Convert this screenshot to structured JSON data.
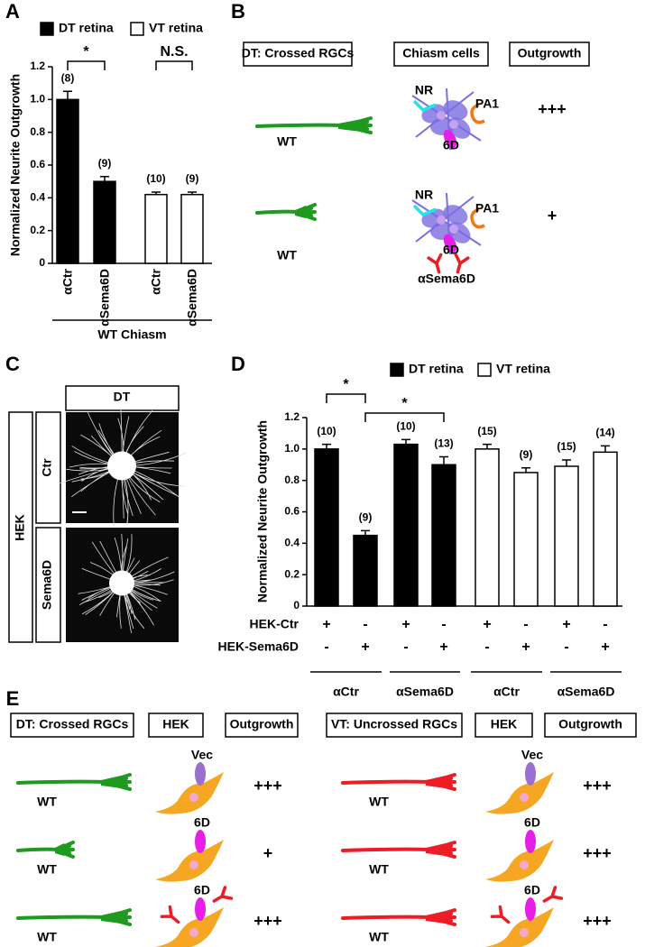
{
  "panels": [
    "A",
    "B",
    "C",
    "D",
    "E"
  ],
  "chart_data": [
    {
      "type": "bar",
      "y_label": "Normalized Neurite Outgrowth",
      "categories": [
        "αCtr",
        "αSema6D",
        "αCtr",
        "αSema6D"
      ],
      "group_label": "WT Chiasm",
      "n_labels": [
        "(8)",
        "(9)",
        "(10)",
        "(9)"
      ],
      "significance": [
        "*",
        "N.S."
      ],
      "series": [
        {
          "name": "DT retina",
          "color": "#000000",
          "values": [
            1.0,
            0.5,
            null,
            null
          ],
          "errors": [
            0.05,
            0.03,
            null,
            null
          ]
        },
        {
          "name": "VT retina",
          "color": "#ffffff",
          "values": [
            null,
            null,
            0.42,
            0.42
          ],
          "errors": [
            null,
            null,
            0.015,
            0.015
          ]
        }
      ],
      "ylim": [
        0,
        1.2
      ],
      "yticks": [
        0,
        0.2,
        0.4,
        0.6,
        0.8,
        {
          "value": 1,
          "label": "1.0"
        },
        1.2
      ]
    },
    {
      "type": "bar",
      "y_label": "Normalized Neurite Outgrowth",
      "n_labels": [
        "(10)",
        "(9)",
        "(10)",
        "(13)",
        "(15)",
        "(9)",
        "(15)",
        "(14)"
      ],
      "significance": [
        "*",
        "*"
      ],
      "conditions": [
        {
          "name": "HEK-Ctr",
          "signs": [
            "+",
            "-",
            "+",
            "-",
            "+",
            "-",
            "+",
            "-"
          ]
        },
        {
          "name": "HEK-Sema6D",
          "signs": [
            "-",
            "+",
            "-",
            "+",
            "-",
            "+",
            "-",
            "+"
          ]
        }
      ],
      "groups": [
        "αCtr",
        "αSema6D",
        "αCtr",
        "αSema6D"
      ],
      "series": [
        {
          "name": "DT retina",
          "color": "#000000",
          "values": [
            1.0,
            0.45,
            1.03,
            0.9,
            null,
            null,
            null,
            null
          ],
          "errors": [
            0.03,
            0.03,
            0.03,
            0.05,
            null,
            null,
            null,
            null
          ]
        },
        {
          "name": "VT retina",
          "color": "#ffffff",
          "values": [
            null,
            null,
            null,
            null,
            1.0,
            0.85,
            0.89,
            0.98
          ],
          "errors": [
            null,
            null,
            null,
            null,
            0.03,
            0.03,
            0.04,
            0.04
          ]
        }
      ],
      "ylim": [
        0,
        1.2
      ],
      "yticks": [
        0,
        0.2,
        0.4,
        0.6,
        0.8,
        {
          "value": 1,
          "label": "1.0"
        },
        1.2
      ]
    }
  ],
  "diagram_b": {
    "headers": [
      "DT: Crossed RGCs",
      "Chiasm cells",
      "Outgrowth"
    ],
    "rows": [
      {
        "axon": "WT",
        "cell_labels": [
          "NR",
          "PA1",
          "6D"
        ],
        "outgrowth": "+++"
      },
      {
        "axon": "WT",
        "cell_labels": [
          "NR",
          "PA1",
          "6D"
        ],
        "antibody": "αSema6D",
        "outgrowth": "+"
      }
    ]
  },
  "image_c": {
    "column": "DT",
    "group": "HEK",
    "rows": [
      "Ctr",
      "Sema6D"
    ]
  },
  "diagram_e": {
    "tables": [
      {
        "headers": [
          "DT: Crossed RGCs",
          "HEK",
          "Outgrowth"
        ],
        "rows": [
          {
            "axon": "WT",
            "hek_label": "Vec",
            "outgrowth": "+++"
          },
          {
            "axon": "WT",
            "hek_label": "6D",
            "outgrowth": "+"
          },
          {
            "axon": "WT",
            "hek_label": "6D",
            "antibody": "αSema6D",
            "outgrowth": "+++"
          }
        ]
      },
      {
        "headers": [
          "VT: Uncrossed RGCs",
          "HEK",
          "Outgrowth"
        ],
        "rows": [
          {
            "axon": "WT",
            "hek_label": "Vec",
            "outgrowth": "+++"
          },
          {
            "axon": "WT",
            "hek_label": "6D",
            "outgrowth": "+++"
          },
          {
            "axon": "WT",
            "hek_label": "6D",
            "antibody": "αSema6D",
            "outgrowth": "+++"
          }
        ]
      }
    ]
  }
}
